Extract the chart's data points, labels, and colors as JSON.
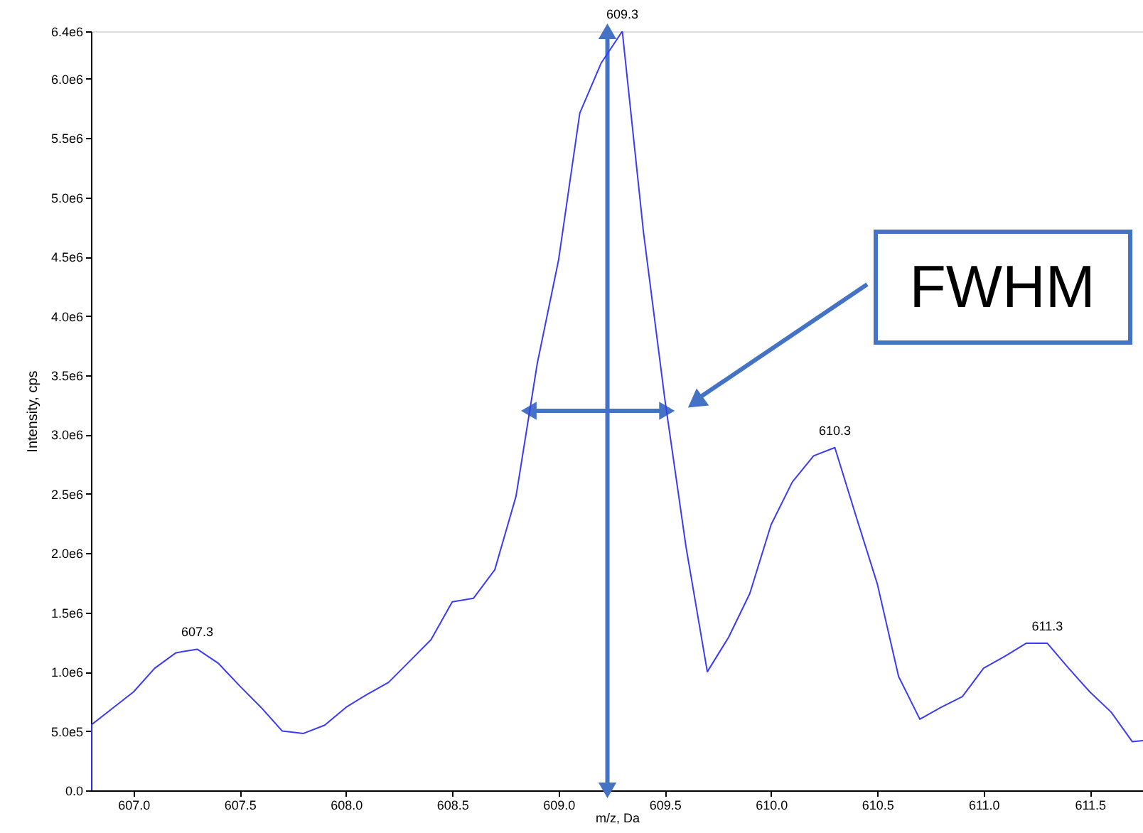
{
  "chart_data": {
    "type": "line",
    "xlabel": "m/z, Da",
    "ylabel": "Intensity, cps",
    "x": [
      606.8,
      606.8,
      607.0,
      607.1,
      607.2,
      607.3,
      607.4,
      607.5,
      607.6,
      607.7,
      607.8,
      607.9,
      608.0,
      608.1,
      608.2,
      608.3,
      608.4,
      608.5,
      608.6,
      608.7,
      608.8,
      608.9,
      609.0,
      609.1,
      609.2,
      609.3,
      609.4,
      609.5,
      609.6,
      609.7,
      609.8,
      609.9,
      610.0,
      610.1,
      610.2,
      610.3,
      610.4,
      610.5,
      610.6,
      610.7,
      610.8,
      610.9,
      611.0,
      611.1,
      611.2,
      611.3,
      611.4,
      611.5,
      611.6,
      611.7,
      611.75
    ],
    "series": [
      {
        "type": "line",
        "color": "#4472c4",
        "marker": "triangle",
        "x": [
          609.23,
          609.23
        ],
        "values": [
          0,
          6400000
        ]
      },
      {
        "type": "line",
        "color": "#4472c4",
        "marker": "triangle",
        "x": [
          608.86,
          609.51
        ],
        "values": [
          3200000,
          3200000
        ]
      },
      {
        "color": "#3b3bf5",
        "values": [
          0,
          550000,
          830000,
          1030000,
          1160000,
          1190000,
          1070000,
          880000,
          700000,
          500000,
          480000,
          550000,
          700000,
          810000,
          910000,
          1090000,
          1270000,
          1590000,
          1620000,
          1860000,
          2480000,
          3600000,
          4470000,
          5710000,
          6130000,
          6400000,
          4700000,
          3300000,
          2050000,
          1000000,
          1290000,
          1660000,
          2240000,
          2600000,
          2820000,
          2890000,
          2310000,
          1740000,
          960000,
          600000,
          700000,
          790000,
          1030000,
          1130000,
          1240000,
          1240000,
          1030000,
          830000,
          660000,
          410000,
          420000
        ]
      }
    ],
    "xlim": [
      606.8,
      611.75
    ],
    "xticks": [
      {
        "value": 607,
        "label": "607.0"
      },
      607.5,
      {
        "value": 608,
        "label": "608.0"
      },
      608.5,
      {
        "value": 609,
        "label": "609.0"
      },
      609.5,
      {
        "value": 610,
        "label": "610.0"
      },
      610.5,
      {
        "value": 611,
        "label": "611.0"
      },
      611.5
    ],
    "ylim": [
      0,
      6400000
    ],
    "yticks": [
      {
        "value": 0,
        "label": "0.0"
      },
      {
        "value": 500000,
        "label": "5.0e5"
      },
      {
        "value": 1000000,
        "label": "1.0e6"
      },
      {
        "value": 1500000,
        "label": "1.5e6"
      },
      {
        "value": 2000000,
        "label": "2.0e6"
      },
      {
        "value": 2500000,
        "label": "2.5e6"
      },
      {
        "value": 3000000,
        "label": "3.0e6"
      },
      {
        "value": 3500000,
        "label": "3.5e6"
      },
      {
        "value": 4000000,
        "label": "4.0e6"
      },
      {
        "value": 4500000,
        "label": "4.5e6"
      },
      {
        "value": 5000000,
        "label": "5.0e6"
      },
      {
        "value": 5500000,
        "label": "5.5e6"
      },
      {
        "value": 6000000,
        "label": "6.0e6"
      },
      {
        "value": 6400000,
        "label": "6.4e6"
      }
    ],
    "annotations": [
      {
        "text": "607.3",
        "x": 607.3,
        "y": 1190000
      },
      {
        "text": "609.3",
        "x": 609.3,
        "y": 6400000
      },
      {
        "text": "610.3",
        "x": 610.3,
        "y": 2890000
      },
      {
        "text": "611.3",
        "x": 611.3,
        "y": 1240000
      },
      "FWHM"
    ],
    "grid": false,
    "marker": "none",
    "line_style": "solid"
  }
}
